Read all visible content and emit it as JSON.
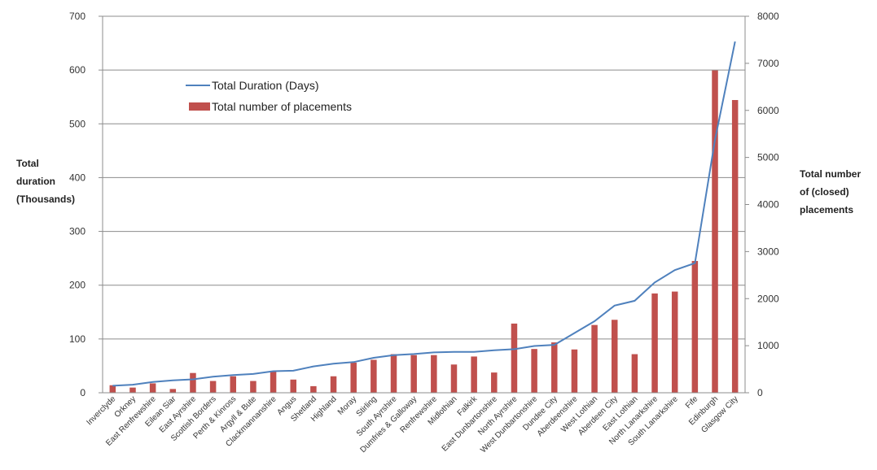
{
  "chart_data": {
    "type": "bar",
    "categories": [
      "Inverclyde",
      "Orkney",
      "East Renfrewshire",
      "Eilean Siar",
      "East Ayrshire",
      "Scottish Borders",
      "Perth & Kinross",
      "Argyll & Bute",
      "Clackmannanshire",
      "Angus",
      "Shetland",
      "Highland",
      "Moray",
      "Stirling",
      "South Ayrshire",
      "Dumfries & Galloway",
      "Renfrewshire",
      "Midlothian",
      "Falkirk",
      "East Dunbartonshire",
      "North Ayrshire",
      "West Dunbartonshire",
      "Dundee City",
      "Aberdeenshire",
      "West Lothian",
      "Aberdeen City",
      "East Lothian",
      "North Lanarkshire",
      "South Lanarkshire",
      "Fife",
      "Edinburgh",
      "Glasgow City"
    ],
    "series": [
      {
        "name": "Total Duration (Days)",
        "type": "line",
        "axis": "left",
        "color": "#4f81bd",
        "values": [
          13,
          15,
          20,
          23,
          25,
          30,
          33,
          35,
          40,
          41,
          49,
          54,
          57,
          65,
          70,
          72,
          75,
          76,
          76,
          79,
          81,
          87,
          89,
          111,
          133,
          162,
          171,
          205,
          228,
          241,
          470,
          653
        ]
      },
      {
        "name": "Total number of placements",
        "type": "bar",
        "axis": "right",
        "color": "#c0504d",
        "values": [
          160,
          110,
          200,
          80,
          420,
          250,
          350,
          250,
          460,
          280,
          140,
          350,
          640,
          700,
          820,
          800,
          800,
          600,
          770,
          430,
          1470,
          930,
          1070,
          920,
          1440,
          1550,
          820,
          2110,
          2150,
          2800,
          6850,
          6220
        ]
      }
    ],
    "y_left": {
      "min": 0,
      "max": 700,
      "ticks": [
        0,
        100,
        200,
        300,
        400,
        500,
        600,
        700
      ]
    },
    "y_right": {
      "min": 0,
      "max": 8000,
      "ticks": [
        0,
        1000,
        2000,
        3000,
        4000,
        5000,
        6000,
        7000,
        8000
      ]
    },
    "left_axis_title": [
      "Total",
      "duration",
      "(Thousands)"
    ],
    "right_axis_title": [
      "Total number",
      "of (closed)",
      "placements"
    ],
    "grid": true,
    "legend_position": "top-left-inside"
  }
}
